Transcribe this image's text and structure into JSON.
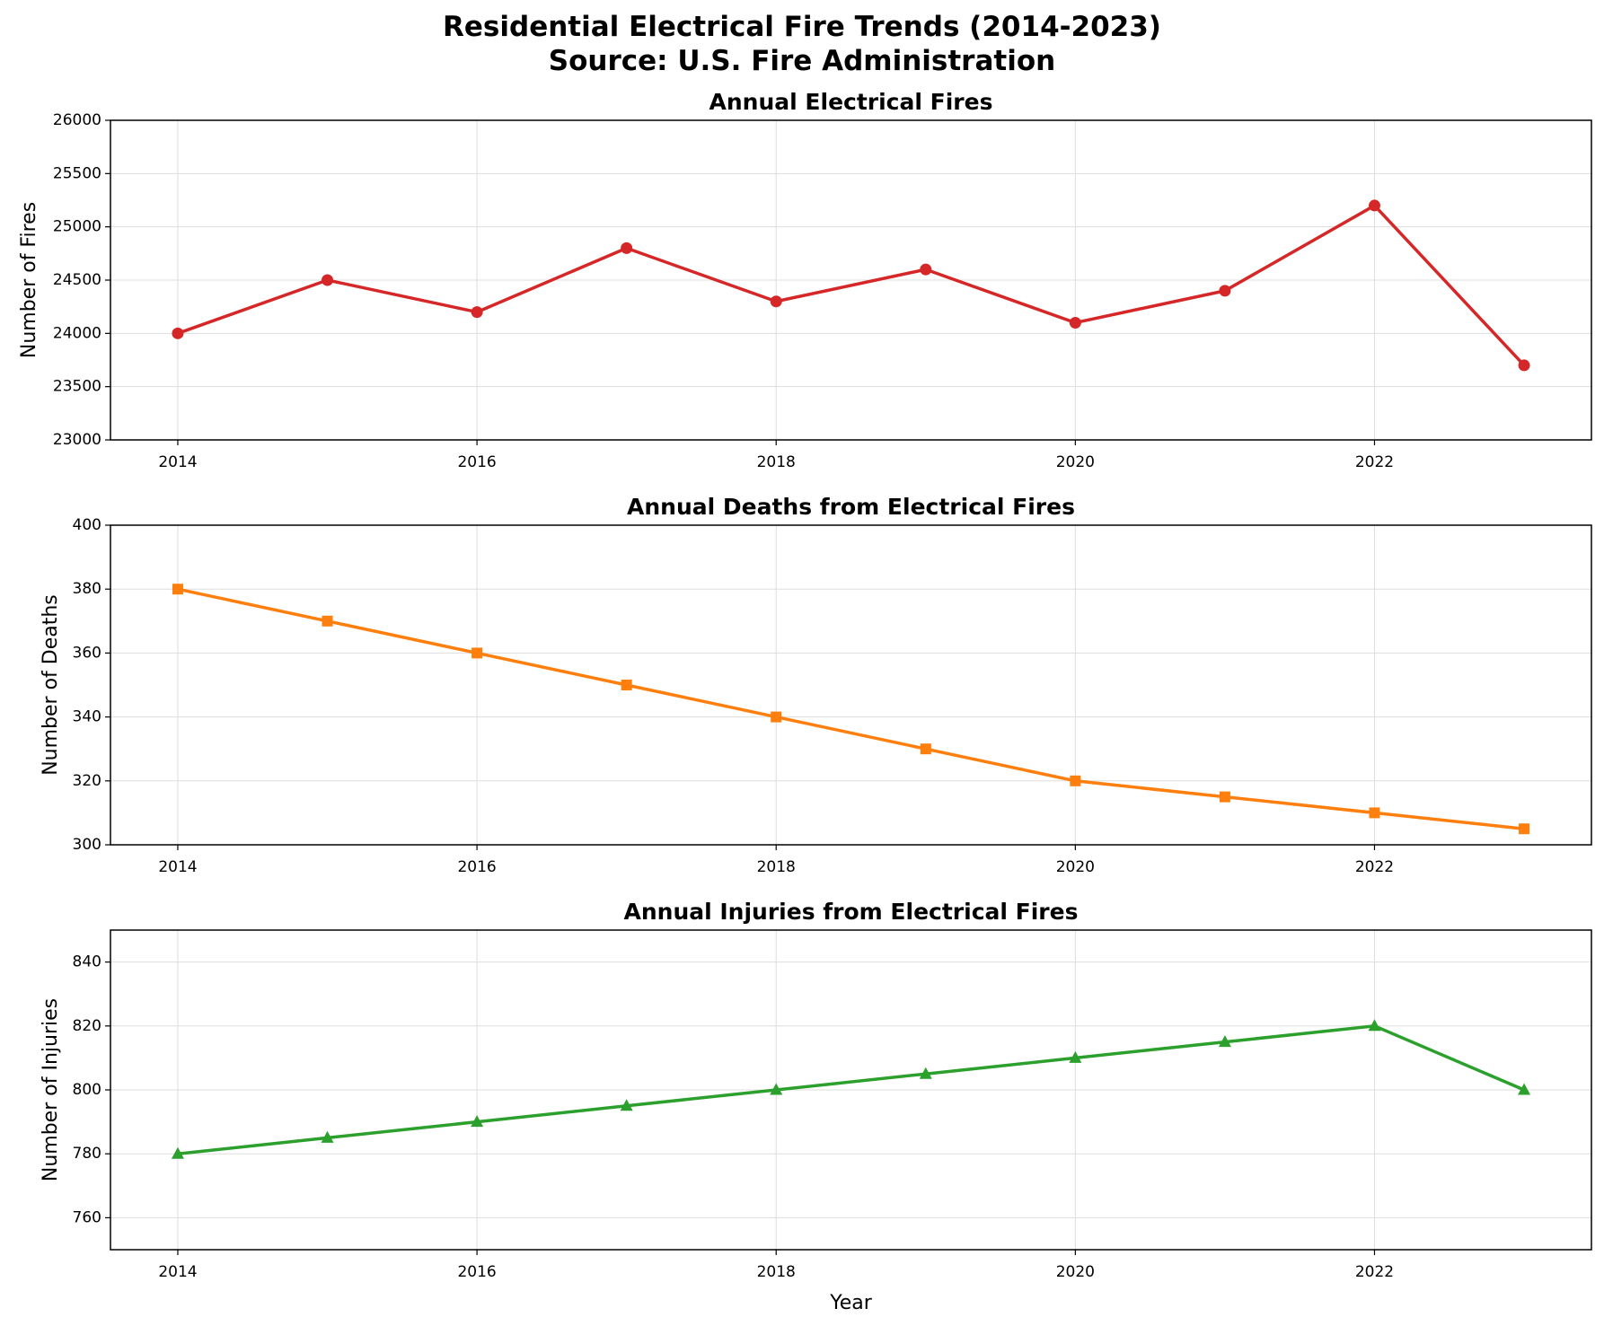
{
  "suptitle_line1": "Residential Electrical Fire Trends (2014-2023)",
  "suptitle_line2": "Source: U.S. Fire Administration",
  "chart_data": [
    {
      "type": "line",
      "title": "Annual Electrical Fires",
      "xlabel": "",
      "ylabel": "Number of Fires",
      "x": [
        2014,
        2015,
        2016,
        2017,
        2018,
        2019,
        2020,
        2021,
        2022,
        2023
      ],
      "values": [
        24000,
        24500,
        24200,
        24800,
        24300,
        24600,
        24100,
        24400,
        25200,
        23700
      ],
      "ylim": [
        23000,
        26000
      ],
      "xlim": [
        2013.55,
        2023.45
      ],
      "yticks": [
        23000,
        23500,
        24000,
        24500,
        25000,
        25500,
        26000
      ],
      "xticks": [
        2014,
        2016,
        2018,
        2020,
        2022
      ],
      "color": "#d62728",
      "marker": "circle",
      "grid": true
    },
    {
      "type": "line",
      "title": "Annual Deaths from Electrical Fires",
      "xlabel": "",
      "ylabel": "Number of Deaths",
      "x": [
        2014,
        2015,
        2016,
        2017,
        2018,
        2019,
        2020,
        2021,
        2022,
        2023
      ],
      "values": [
        380,
        370,
        360,
        350,
        340,
        330,
        320,
        315,
        310,
        305
      ],
      "ylim": [
        300,
        400
      ],
      "xlim": [
        2013.55,
        2023.45
      ],
      "yticks": [
        300,
        320,
        340,
        360,
        380,
        400
      ],
      "xticks": [
        2014,
        2016,
        2018,
        2020,
        2022
      ],
      "color": "#ff7f0e",
      "marker": "square",
      "grid": true
    },
    {
      "type": "line",
      "title": "Annual Injuries from Electrical Fires",
      "xlabel": "Year",
      "ylabel": "Number of Injuries",
      "x": [
        2014,
        2015,
        2016,
        2017,
        2018,
        2019,
        2020,
        2021,
        2022,
        2023
      ],
      "values": [
        780,
        785,
        790,
        795,
        800,
        805,
        810,
        815,
        820,
        800
      ],
      "ylim": [
        750,
        850
      ],
      "xlim": [
        2013.55,
        2023.45
      ],
      "yticks": [
        760,
        780,
        800,
        820,
        840
      ],
      "xticks": [
        2014,
        2016,
        2018,
        2020,
        2022
      ],
      "color": "#2ca02c",
      "marker": "triangle",
      "grid": true
    }
  ]
}
